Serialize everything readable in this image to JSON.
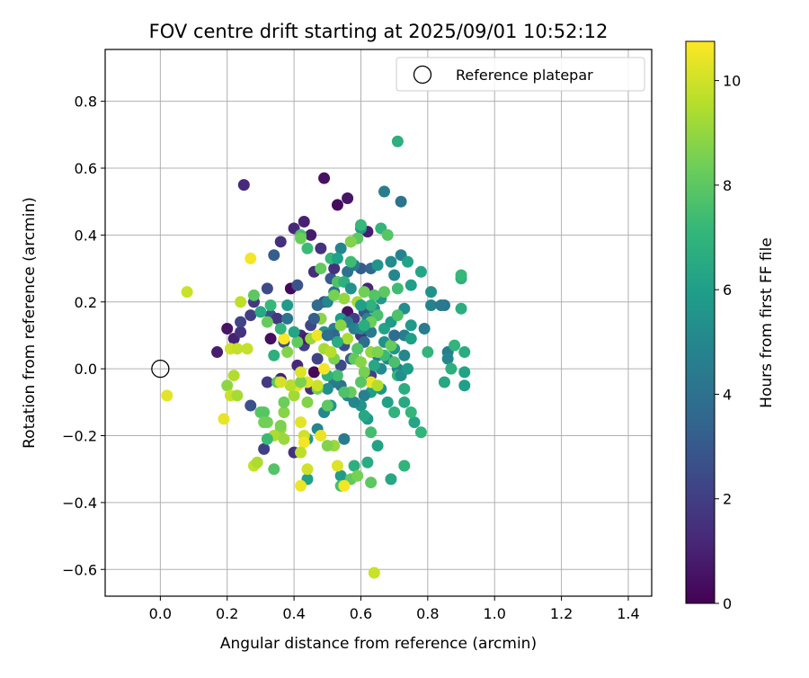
{
  "chart_data": {
    "type": "scatter",
    "title": "FOV centre drift starting at 2025/09/01 10:52:12",
    "xlabel": "Angular distance from reference (arcmin)",
    "ylabel": "Rotation from reference (arcmin)",
    "xlim": [
      -0.165,
      1.47
    ],
    "ylim": [
      -0.68,
      0.955
    ],
    "xticks": [
      0.0,
      0.2,
      0.4,
      0.6,
      0.8,
      1.0,
      1.2,
      1.4
    ],
    "xtick_labels": [
      "0.0",
      "0.2",
      "0.4",
      "0.6",
      "0.8",
      "1.0",
      "1.2",
      "1.4"
    ],
    "yticks": [
      -0.6,
      -0.4,
      -0.2,
      0.0,
      0.2,
      0.4,
      0.6,
      0.8
    ],
    "ytick_labels": [
      "−0.6",
      "−0.4",
      "−0.2",
      "0.0",
      "0.2",
      "0.4",
      "0.6",
      "0.8"
    ],
    "grid": true,
    "legend": {
      "placement": "top-right",
      "entries": [
        "Reference platepar"
      ]
    },
    "reference_point": {
      "x": 0.0,
      "y": 0.0,
      "label": "Reference platepar"
    },
    "colorbar": {
      "label": "Hours from first FF file",
      "colormap": "viridis",
      "range": [
        0,
        10.75
      ],
      "ticks": [
        0,
        2,
        4,
        6,
        8,
        10
      ],
      "tick_labels": [
        "0",
        "2",
        "4",
        "6",
        "8",
        "10"
      ]
    },
    "colormap_stops": [
      "#440154",
      "#482878",
      "#3e4989",
      "#31688e",
      "#26828e",
      "#1f9e89",
      "#35b779",
      "#6ece58",
      "#b5de2b",
      "#fde725"
    ],
    "points": [
      [
        0.53,
        0.49,
        0.3
      ],
      [
        0.49,
        0.57,
        0.5
      ],
      [
        0.25,
        0.55,
        1.3
      ],
      [
        0.43,
        0.44,
        1.0
      ],
      [
        0.4,
        0.42,
        1.2
      ],
      [
        0.45,
        0.4,
        0.8
      ],
      [
        0.56,
        0.51,
        0.6
      ],
      [
        0.62,
        0.41,
        0.9
      ],
      [
        0.36,
        0.38,
        1.5
      ],
      [
        0.48,
        0.36,
        1.6
      ],
      [
        0.46,
        0.29,
        1.4
      ],
      [
        0.39,
        0.24,
        0.2
      ],
      [
        0.41,
        0.25,
        2.8
      ],
      [
        0.2,
        0.12,
        0.6
      ],
      [
        0.22,
        0.09,
        1.0
      ],
      [
        0.17,
        0.05,
        0.9
      ],
      [
        0.24,
        0.11,
        1.6
      ],
      [
        0.24,
        0.14,
        2.2
      ],
      [
        0.27,
        0.16,
        2.0
      ],
      [
        0.32,
        0.24,
        2.5
      ],
      [
        0.34,
        0.34,
        3.2
      ],
      [
        0.28,
        0.2,
        1.8
      ],
      [
        0.33,
        0.16,
        2.9
      ],
      [
        0.35,
        0.15,
        1.7
      ],
      [
        0.33,
        0.09,
        0.4
      ],
      [
        0.37,
        0.08,
        2.4
      ],
      [
        0.42,
        0.1,
        1.1
      ],
      [
        0.43,
        0.07,
        2.0
      ],
      [
        0.45,
        0.13,
        2.3
      ],
      [
        0.44,
        0.09,
        0.7
      ],
      [
        0.46,
        -0.01,
        0.2
      ],
      [
        0.41,
        0.01,
        1.2
      ],
      [
        0.39,
        -0.05,
        1.6
      ],
      [
        0.36,
        -0.03,
        0.9
      ],
      [
        0.32,
        -0.04,
        1.9
      ],
      [
        0.27,
        -0.11,
        2.7
      ],
      [
        0.31,
        -0.24,
        2.1
      ],
      [
        0.4,
        -0.25,
        1.5
      ],
      [
        0.45,
        -0.06,
        1.3
      ],
      [
        0.47,
        0.03,
        2.2
      ],
      [
        0.49,
        0.2,
        2.6
      ],
      [
        0.51,
        0.27,
        3.0
      ],
      [
        0.52,
        0.3,
        1.5
      ],
      [
        0.56,
        0.17,
        0.5
      ],
      [
        0.58,
        0.15,
        2.0
      ],
      [
        0.6,
        0.1,
        1.7
      ],
      [
        0.62,
        0.24,
        1.1
      ],
      [
        0.55,
        0.07,
        2.6
      ],
      [
        0.57,
        0.03,
        3.3
      ],
      [
        0.54,
        0.01,
        2.4
      ],
      [
        0.63,
        -0.02,
        2.1
      ],
      [
        0.59,
        0.06,
        1.0
      ],
      [
        0.61,
        0.17,
        2.8
      ],
      [
        0.6,
        0.3,
        3.1
      ],
      [
        0.63,
        0.3,
        3.6
      ],
      [
        0.54,
        0.36,
        4.9
      ],
      [
        0.57,
        0.38,
        5.1
      ],
      [
        0.6,
        0.42,
        5.8
      ],
      [
        0.67,
        0.53,
        4.6
      ],
      [
        0.72,
        0.5,
        4.1
      ],
      [
        0.72,
        0.34,
        4.8
      ],
      [
        0.69,
        0.32,
        5.2
      ],
      [
        0.65,
        0.31,
        5.6
      ],
      [
        0.58,
        0.31,
        4.5
      ],
      [
        0.56,
        0.29,
        4.0
      ],
      [
        0.52,
        0.23,
        4.2
      ],
      [
        0.5,
        0.2,
        5.0
      ],
      [
        0.52,
        0.12,
        4.6
      ],
      [
        0.48,
        0.15,
        4.4
      ],
      [
        0.49,
        0.11,
        5.5
      ],
      [
        0.54,
        0.15,
        5.9
      ],
      [
        0.56,
        0.14,
        4.3
      ],
      [
        0.58,
        0.12,
        4.7
      ],
      [
        0.6,
        0.12,
        5.1
      ],
      [
        0.62,
        0.15,
        4.9
      ],
      [
        0.64,
        0.18,
        5.3
      ],
      [
        0.66,
        0.21,
        5.7
      ],
      [
        0.63,
        0.11,
        4.4
      ],
      [
        0.61,
        0.08,
        3.8
      ],
      [
        0.65,
        0.04,
        4.2
      ],
      [
        0.67,
        0.08,
        5.4
      ],
      [
        0.7,
        0.06,
        5.6
      ],
      [
        0.68,
        0.03,
        4.9
      ],
      [
        0.66,
        0.0,
        5.2
      ],
      [
        0.71,
        0.0,
        4.8
      ],
      [
        0.73,
        0.04,
        5.0
      ],
      [
        0.73,
        0.1,
        4.6
      ],
      [
        0.75,
        0.13,
        5.8
      ],
      [
        0.79,
        0.12,
        4.5
      ],
      [
        0.73,
        0.18,
        5.3
      ],
      [
        0.75,
        0.25,
        6.0
      ],
      [
        0.78,
        0.29,
        6.3
      ],
      [
        0.74,
        0.32,
        6.2
      ],
      [
        0.7,
        0.28,
        5.0
      ],
      [
        0.81,
        0.23,
        5.5
      ],
      [
        0.81,
        0.19,
        4.8
      ],
      [
        0.85,
        0.19,
        4.2
      ],
      [
        0.86,
        0.05,
        4.6
      ],
      [
        0.86,
        0.03,
        5.0
      ],
      [
        0.9,
        0.18,
        6.7
      ],
      [
        0.9,
        0.27,
        6.8
      ],
      [
        0.9,
        0.28,
        7.2
      ],
      [
        0.88,
        0.07,
        7.0
      ],
      [
        0.91,
        0.05,
        6.6
      ],
      [
        0.87,
        0.0,
        6.8
      ],
      [
        0.91,
        -0.01,
        6.2
      ],
      [
        0.91,
        -0.05,
        6.0
      ],
      [
        0.85,
        -0.04,
        6.4
      ],
      [
        0.78,
        -0.19,
        7.0
      ],
      [
        0.76,
        -0.16,
        6.3
      ],
      [
        0.75,
        -0.13,
        7.1
      ],
      [
        0.73,
        -0.1,
        6.5
      ],
      [
        0.7,
        -0.13,
        6.9
      ],
      [
        0.68,
        -0.1,
        6.1
      ],
      [
        0.66,
        -0.06,
        5.5
      ],
      [
        0.63,
        -0.07,
        6.0
      ],
      [
        0.61,
        -0.08,
        4.7
      ],
      [
        0.6,
        -0.11,
        5.6
      ],
      [
        0.62,
        -0.15,
        5.8
      ],
      [
        0.61,
        -0.14,
        6.4
      ],
      [
        0.63,
        -0.19,
        7.5
      ],
      [
        0.65,
        -0.23,
        6.2
      ],
      [
        0.62,
        -0.28,
        6.6
      ],
      [
        0.58,
        -0.29,
        6.8
      ],
      [
        0.54,
        -0.32,
        5.9
      ],
      [
        0.55,
        -0.21,
        4.5
      ],
      [
        0.58,
        -0.1,
        5.0
      ],
      [
        0.56,
        -0.08,
        4.8
      ],
      [
        0.54,
        -0.05,
        4.1
      ],
      [
        0.52,
        -0.04,
        4.5
      ],
      [
        0.5,
        -0.06,
        5.3
      ],
      [
        0.51,
        -0.11,
        5.6
      ],
      [
        0.49,
        -0.13,
        5.0
      ],
      [
        0.47,
        -0.18,
        4.9
      ],
      [
        0.44,
        -0.21,
        5.6
      ],
      [
        0.44,
        -0.33,
        6.1
      ],
      [
        0.54,
        -0.35,
        7.6
      ],
      [
        0.57,
        -0.33,
        8.1
      ],
      [
        0.59,
        -0.32,
        8.5
      ],
      [
        0.63,
        -0.34,
        8.0
      ],
      [
        0.69,
        -0.33,
        6.4
      ],
      [
        0.73,
        -0.29,
        7.0
      ],
      [
        0.64,
        0.01,
        6.4
      ],
      [
        0.67,
        0.04,
        7.3
      ],
      [
        0.69,
        0.07,
        8.2
      ],
      [
        0.7,
        0.02,
        7.6
      ],
      [
        0.71,
        -0.02,
        7.1
      ],
      [
        0.73,
        -0.06,
        6.7
      ],
      [
        0.71,
        0.24,
        7.4
      ],
      [
        0.67,
        0.23,
        8.0
      ],
      [
        0.64,
        0.22,
        7.8
      ],
      [
        0.63,
        0.19,
        6.9
      ],
      [
        0.65,
        0.16,
        7.6
      ],
      [
        0.63,
        0.14,
        8.3
      ],
      [
        0.61,
        0.13,
        6.7
      ],
      [
        0.59,
        0.06,
        7.8
      ],
      [
        0.58,
        0.03,
        8.1
      ],
      [
        0.6,
        0.02,
        8.8
      ],
      [
        0.61,
        -0.01,
        8.5
      ],
      [
        0.57,
        -0.07,
        8.2
      ],
      [
        0.55,
        -0.07,
        7.7
      ],
      [
        0.53,
        -0.02,
        7.5
      ],
      [
        0.52,
        0.03,
        8.6
      ],
      [
        0.5,
        -0.02,
        6.9
      ],
      [
        0.47,
        -0.06,
        8.4
      ],
      [
        0.44,
        -0.1,
        8.7
      ],
      [
        0.4,
        -0.08,
        9.2
      ],
      [
        0.37,
        -0.13,
        8.8
      ],
      [
        0.36,
        -0.18,
        9.0
      ],
      [
        0.34,
        -0.2,
        9.4
      ],
      [
        0.32,
        -0.16,
        8.5
      ],
      [
        0.31,
        -0.13,
        7.9
      ],
      [
        0.35,
        -0.04,
        8.0
      ],
      [
        0.37,
        -0.1,
        8.3
      ],
      [
        0.38,
        0.05,
        8.7
      ],
      [
        0.41,
        0.08,
        8.1
      ],
      [
        0.45,
        0.09,
        9.1
      ],
      [
        0.48,
        0.15,
        8.9
      ],
      [
        0.49,
        0.06,
        9.3
      ],
      [
        0.51,
        0.05,
        9.6
      ],
      [
        0.52,
        0.22,
        8.5
      ],
      [
        0.53,
        0.26,
        7.7
      ],
      [
        0.55,
        0.26,
        6.8
      ],
      [
        0.57,
        0.32,
        7.4
      ],
      [
        0.59,
        0.39,
        8.0
      ],
      [
        0.57,
        0.38,
        8.7
      ],
      [
        0.6,
        0.43,
        7.2
      ],
      [
        0.66,
        0.42,
        7.0
      ],
      [
        0.68,
        0.4,
        7.9
      ],
      [
        0.71,
        0.68,
        6.8
      ],
      [
        0.42,
        0.4,
        7.6
      ],
      [
        0.42,
        0.39,
        8.3
      ],
      [
        0.44,
        0.36,
        7.3
      ],
      [
        0.48,
        0.3,
        8.1
      ],
      [
        0.51,
        0.33,
        7.1
      ],
      [
        0.53,
        0.33,
        6.1
      ],
      [
        0.34,
        0.04,
        6.8
      ],
      [
        0.33,
        0.19,
        7.2
      ],
      [
        0.32,
        0.14,
        8.2
      ],
      [
        0.3,
        0.17,
        6.5
      ],
      [
        0.28,
        0.22,
        8.0
      ],
      [
        0.24,
        0.2,
        9.7
      ],
      [
        0.21,
        0.06,
        10.0
      ],
      [
        0.23,
        0.06,
        9.8
      ],
      [
        0.22,
        -0.02,
        9.5
      ],
      [
        0.2,
        -0.05,
        8.9
      ],
      [
        0.21,
        -0.08,
        9.9
      ],
      [
        0.23,
        -0.08,
        9.3
      ],
      [
        0.19,
        -0.15,
        10.4
      ],
      [
        0.3,
        -0.13,
        7.9
      ],
      [
        0.31,
        -0.16,
        8.4
      ],
      [
        0.36,
        -0.17,
        8.6
      ],
      [
        0.37,
        -0.21,
        9.1
      ],
      [
        0.34,
        -0.3,
        7.8
      ],
      [
        0.32,
        -0.21,
        7.3
      ],
      [
        0.28,
        -0.29,
        9.8
      ],
      [
        0.29,
        -0.28,
        9.4
      ],
      [
        0.42,
        -0.16,
        10.3
      ],
      [
        0.43,
        -0.2,
        10.0
      ],
      [
        0.43,
        -0.22,
        10.6
      ],
      [
        0.42,
        -0.25,
        9.7
      ],
      [
        0.44,
        -0.3,
        10.0
      ],
      [
        0.42,
        -0.35,
        10.5
      ],
      [
        0.48,
        -0.2,
        10.4
      ],
      [
        0.53,
        -0.29,
        10.2
      ],
      [
        0.55,
        -0.35,
        10.6
      ],
      [
        0.52,
        -0.23,
        9.1
      ],
      [
        0.5,
        -0.23,
        8.7
      ],
      [
        0.5,
        -0.11,
        8.0
      ],
      [
        0.47,
        -0.05,
        9.9
      ],
      [
        0.44,
        -0.04,
        10.2
      ],
      [
        0.41,
        -0.05,
        10.4
      ],
      [
        0.39,
        -0.05,
        9.6
      ],
      [
        0.42,
        -0.04,
        8.6
      ],
      [
        0.42,
        -0.01,
        10.2
      ],
      [
        0.47,
        0.1,
        10.5
      ],
      [
        0.37,
        0.09,
        10.7
      ],
      [
        0.49,
        0.0,
        10.6
      ],
      [
        0.36,
        -0.04,
        10.1
      ],
      [
        0.26,
        0.06,
        9.8
      ],
      [
        0.27,
        0.33,
        10.6
      ],
      [
        0.08,
        0.23,
        9.9
      ],
      [
        0.02,
        -0.08,
        10.3
      ],
      [
        0.63,
        -0.04,
        10.5
      ],
      [
        0.65,
        -0.05,
        9.5
      ],
      [
        0.64,
        -0.61,
        9.9
      ],
      [
        0.6,
        -0.04,
        7.9
      ],
      [
        0.59,
        0.2,
        9.2
      ],
      [
        0.61,
        0.23,
        8.4
      ],
      [
        0.6,
        0.19,
        6.1
      ],
      [
        0.57,
        0.24,
        5.4
      ],
      [
        0.55,
        0.21,
        9.0
      ],
      [
        0.56,
        0.09,
        9.4
      ],
      [
        0.54,
        0.13,
        8.8
      ],
      [
        0.52,
        0.1,
        3.5
      ],
      [
        0.5,
        0.1,
        3.9
      ],
      [
        0.53,
        0.08,
        6.6
      ],
      [
        0.46,
        0.15,
        3.2
      ],
      [
        0.47,
        0.19,
        3.7
      ],
      [
        0.38,
        0.19,
        5.8
      ],
      [
        0.38,
        0.15,
        4.1
      ],
      [
        0.4,
        0.11,
        6.3
      ],
      [
        0.36,
        0.12,
        7.0
      ],
      [
        0.63,
        0.05,
        9.0
      ],
      [
        0.65,
        0.05,
        8.6
      ],
      [
        0.67,
        0.12,
        6.2
      ],
      [
        0.69,
        0.14,
        5.9
      ],
      [
        0.71,
        0.16,
        7.7
      ],
      [
        0.75,
        0.09,
        6.0
      ],
      [
        0.8,
        0.05,
        7.0
      ],
      [
        0.84,
        0.19,
        4.4
      ],
      [
        0.72,
        -0.02,
        5.3
      ],
      [
        0.7,
        0.1,
        3.8
      ],
      [
        0.74,
        0.0,
        5.9
      ]
    ]
  }
}
